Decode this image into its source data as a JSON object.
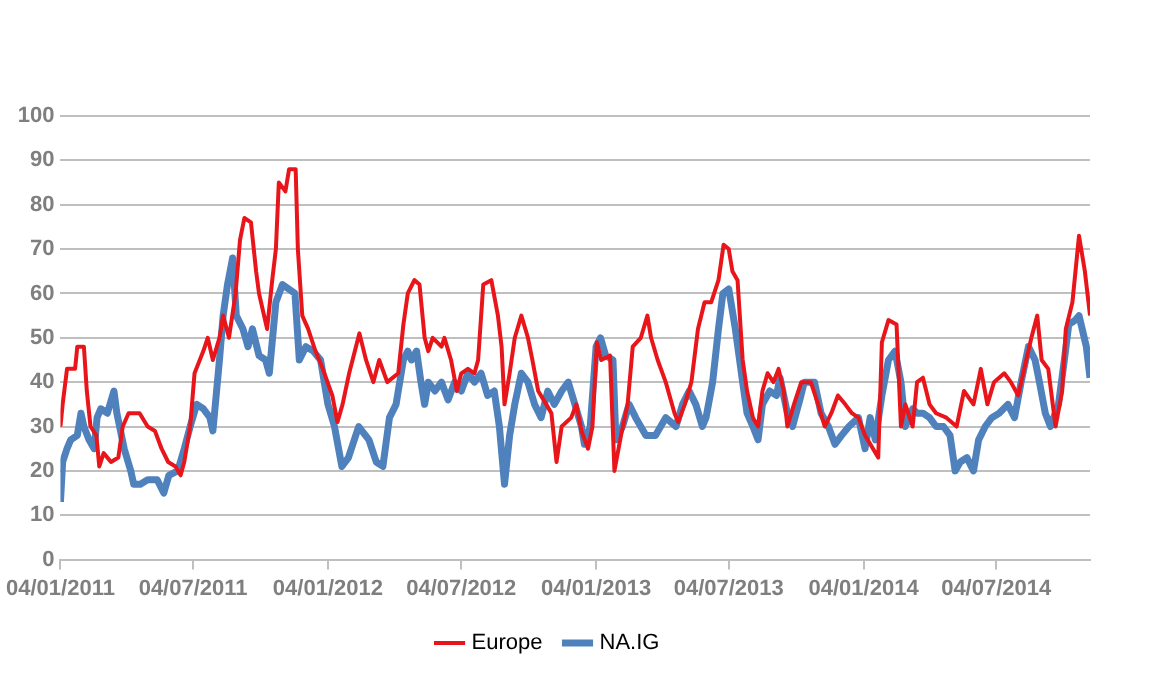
{
  "chart_data": {
    "type": "line",
    "grid": "y",
    "legend": "bottom",
    "marker": "none",
    "line_style": "solid",
    "xlim": [
      "2011-01-04",
      "2014-11-09"
    ],
    "xticks": [
      {
        "value": "2011-01-04",
        "label": "04/01/2011"
      },
      {
        "value": "2011-07-04",
        "label": "04/07/2011"
      },
      {
        "value": "2012-01-04",
        "label": "04/01/2012"
      },
      {
        "value": "2012-07-04",
        "label": "04/07/2012"
      },
      {
        "value": "2013-01-04",
        "label": "04/01/2013"
      },
      {
        "value": "2013-07-04",
        "label": "04/07/2013"
      },
      {
        "value": "2014-01-04",
        "label": "04/01/2014"
      },
      {
        "value": "2014-07-04",
        "label": "04/07/2014"
      }
    ],
    "ylim": [
      0,
      100
    ],
    "yticks": [
      0,
      10,
      20,
      30,
      40,
      50,
      60,
      70,
      80,
      90,
      100
    ],
    "series": [
      {
        "name": "Europe",
        "color": "#e8161b",
        "x": [
          "2011-01-04",
          "2011-01-07",
          "2011-01-13",
          "2011-01-24",
          "2011-01-27",
          "2011-02-05",
          "2011-02-09",
          "2011-02-14",
          "2011-02-22",
          "2011-02-26",
          "2011-03-04",
          "2011-03-14",
          "2011-03-24",
          "2011-03-30",
          "2011-04-07",
          "2011-04-22",
          "2011-05-03",
          "2011-05-13",
          "2011-05-22",
          "2011-05-31",
          "2011-06-10",
          "2011-06-17",
          "2011-06-22",
          "2011-06-30",
          "2011-07-06",
          "2011-07-18",
          "2011-07-24",
          "2011-07-31",
          "2011-08-09",
          "2011-08-14",
          "2011-08-22",
          "2011-08-31",
          "2011-09-06",
          "2011-09-12",
          "2011-09-21",
          "2011-09-28",
          "2011-10-02",
          "2011-10-13",
          "2011-10-20",
          "2011-10-25",
          "2011-10-29",
          "2011-11-07",
          "2011-11-12",
          "2011-11-21",
          "2011-11-24",
          "2011-11-30",
          "2011-12-08",
          "2011-12-18",
          "2011-12-28",
          "2012-01-10",
          "2012-01-17",
          "2012-01-24",
          "2012-02-02",
          "2012-02-16",
          "2012-02-25",
          "2012-03-06",
          "2012-03-14",
          "2012-03-25",
          "2012-04-09",
          "2012-04-16",
          "2012-04-22",
          "2012-05-01",
          "2012-05-08",
          "2012-05-15",
          "2012-05-20",
          "2012-05-26",
          "2012-06-07",
          "2012-06-11",
          "2012-06-20",
          "2012-06-28",
          "2012-07-04",
          "2012-07-13",
          "2012-07-22",
          "2012-07-27",
          "2012-08-03",
          "2012-08-14",
          "2012-08-23",
          "2012-08-28",
          "2012-09-01",
          "2012-09-08",
          "2012-09-15",
          "2012-09-24",
          "2012-10-03",
          "2012-10-09",
          "2012-10-17",
          "2012-10-28",
          "2012-11-04",
          "2012-11-11",
          "2012-11-18",
          "2012-12-01",
          "2012-12-08",
          "2012-12-15",
          "2012-12-24",
          "2012-12-30",
          "2013-01-05",
          "2013-01-11",
          "2013-01-23",
          "2013-01-29",
          "2013-02-07",
          "2013-02-16",
          "2013-02-23",
          "2013-03-06",
          "2013-03-15",
          "2013-03-20",
          "2013-03-29",
          "2013-04-09",
          "2013-04-21",
          "2013-04-26",
          "2013-05-05",
          "2013-05-14",
          "2013-05-23",
          "2013-06-01",
          "2013-06-10",
          "2013-06-20",
          "2013-06-27",
          "2013-07-04",
          "2013-07-09",
          "2013-07-16",
          "2013-07-23",
          "2013-07-29",
          "2013-08-06",
          "2013-08-13",
          "2013-08-19",
          "2013-08-26",
          "2013-09-03",
          "2013-09-10",
          "2013-09-17",
          "2013-09-22",
          "2013-10-01",
          "2013-10-11",
          "2013-10-24",
          "2013-11-03",
          "2013-11-12",
          "2013-11-21",
          "2013-11-30",
          "2013-12-10",
          "2013-12-19",
          "2013-12-28",
          "2014-01-06",
          "2014-01-24",
          "2014-01-29",
          "2014-02-07",
          "2014-02-18",
          "2014-02-24",
          "2014-03-02",
          "2014-03-12",
          "2014-03-18",
          "2014-03-26",
          "2014-04-04",
          "2014-04-13",
          "2014-04-27",
          "2014-05-11",
          "2014-05-21",
          "2014-06-03",
          "2014-06-13",
          "2014-06-22",
          "2014-07-01",
          "2014-07-15",
          "2014-07-24",
          "2014-08-03",
          "2014-08-14",
          "2014-08-21",
          "2014-08-29",
          "2014-09-04",
          "2014-09-13",
          "2014-09-23",
          "2014-10-02",
          "2014-10-07",
          "2014-10-16",
          "2014-10-25",
          "2014-11-02",
          "2014-11-09"
        ],
        "values": [
          30,
          35,
          43,
          43,
          48,
          48,
          38,
          30,
          28,
          21,
          24,
          22,
          23,
          30,
          33,
          33,
          30,
          29,
          25,
          22,
          21,
          19,
          22,
          30,
          42,
          47,
          50,
          45,
          50,
          55,
          50,
          60,
          72,
          77,
          76,
          65,
          60,
          52,
          63,
          70,
          85,
          83,
          88,
          88,
          70,
          55,
          52,
          47,
          43,
          37,
          31,
          35,
          42,
          51,
          45,
          40,
          45,
          40,
          42,
          53,
          60,
          63,
          62,
          50,
          47,
          50,
          48,
          50,
          45,
          38,
          42,
          43,
          42,
          45,
          62,
          63,
          55,
          48,
          35,
          42,
          50,
          55,
          50,
          45,
          38,
          35,
          33,
          22,
          30,
          32,
          35,
          29,
          25,
          30,
          49,
          45,
          46,
          20,
          28,
          35,
          48,
          50,
          55,
          50,
          45,
          40,
          33,
          31,
          35,
          40,
          52,
          58,
          58,
          63,
          71,
          70,
          65,
          63,
          45,
          38,
          32,
          30,
          38,
          42,
          40,
          43,
          38,
          30,
          35,
          40,
          40,
          35,
          30,
          33,
          37,
          35,
          33,
          32,
          28,
          23,
          49,
          54,
          53,
          30,
          35,
          30,
          40,
          41,
          35,
          33,
          32,
          30,
          38,
          35,
          43,
          35,
          40,
          42,
          40,
          37,
          45,
          50,
          55,
          45,
          43,
          30,
          38,
          52,
          58,
          73,
          65,
          55
        ]
      },
      {
        "name": "NA.IG",
        "color": "#4f81bd",
        "x": [
          "2011-01-04",
          "2011-01-07",
          "2011-01-13",
          "2011-01-18",
          "2011-01-27",
          "2011-02-01",
          "2011-02-05",
          "2011-02-12",
          "2011-02-19",
          "2011-02-23",
          "2011-02-28",
          "2011-03-09",
          "2011-03-18",
          "2011-03-22",
          "2011-04-01",
          "2011-04-10",
          "2011-04-14",
          "2011-04-23",
          "2011-05-03",
          "2011-05-16",
          "2011-05-25",
          "2011-06-01",
          "2011-06-13",
          "2011-06-22",
          "2011-06-30",
          "2011-07-09",
          "2011-07-18",
          "2011-07-27",
          "2011-07-31",
          "2011-08-09",
          "2011-08-14",
          "2011-08-20",
          "2011-08-27",
          "2011-09-01",
          "2011-09-10",
          "2011-09-17",
          "2011-09-23",
          "2011-10-02",
          "2011-10-11",
          "2011-10-16",
          "2011-10-25",
          "2011-11-03",
          "2011-11-20",
          "2011-11-26",
          "2011-12-05",
          "2011-12-15",
          "2011-12-25",
          "2012-01-04",
          "2012-01-13",
          "2012-01-23",
          "2012-02-01",
          "2012-02-15",
          "2012-02-29",
          "2012-03-10",
          "2012-03-19",
          "2012-03-28",
          "2012-04-06",
          "2012-04-09",
          "2012-04-16",
          "2012-04-22",
          "2012-04-27",
          "2012-05-04",
          "2012-05-10",
          "2012-05-15",
          "2012-05-20",
          "2012-05-29",
          "2012-06-07",
          "2012-06-16",
          "2012-06-25",
          "2012-07-04",
          "2012-07-13",
          "2012-07-22",
          "2012-07-31",
          "2012-08-09",
          "2012-08-18",
          "2012-08-25",
          "2012-09-01",
          "2012-09-08",
          "2012-09-15",
          "2012-09-24",
          "2012-10-03",
          "2012-10-12",
          "2012-10-21",
          "2012-10-30",
          "2012-11-08",
          "2012-11-18",
          "2012-11-27",
          "2012-12-06",
          "2012-12-15",
          "2012-12-19",
          "2012-12-27",
          "2013-01-04",
          "2013-01-10",
          "2013-01-17",
          "2013-01-27",
          "2013-01-31",
          "2013-02-09",
          "2013-02-18",
          "2013-02-27",
          "2013-03-13",
          "2013-03-26",
          "2013-04-09",
          "2013-04-23",
          "2013-05-02",
          "2013-05-11",
          "2013-05-20",
          "2013-05-29",
          "2013-06-03",
          "2013-06-12",
          "2013-06-20",
          "2013-06-26",
          "2013-07-04",
          "2013-07-13",
          "2013-07-23",
          "2013-07-29",
          "2013-08-06",
          "2013-08-13",
          "2013-08-19",
          "2013-08-29",
          "2013-09-07",
          "2013-09-12",
          "2013-09-22",
          "2013-09-29",
          "2013-10-09",
          "2013-10-15",
          "2013-10-29",
          "2013-11-07",
          "2013-11-17",
          "2013-11-26",
          "2013-12-05",
          "2013-12-15",
          "2013-12-28",
          "2014-01-06",
          "2014-01-13",
          "2014-01-20",
          "2014-01-29",
          "2014-02-07",
          "2014-02-16",
          "2014-02-24",
          "2014-03-02",
          "2014-03-12",
          "2014-03-18",
          "2014-03-26",
          "2014-04-04",
          "2014-04-13",
          "2014-04-23",
          "2014-05-02",
          "2014-05-09",
          "2014-05-16",
          "2014-05-25",
          "2014-06-03",
          "2014-06-10",
          "2014-06-19",
          "2014-06-28",
          "2014-07-08",
          "2014-07-20",
          "2014-07-29",
          "2014-08-07",
          "2014-08-17",
          "2014-08-26",
          "2014-09-01",
          "2014-09-09",
          "2014-09-16",
          "2014-09-27",
          "2014-10-05",
          "2014-10-11",
          "2014-10-20",
          "2014-10-25",
          "2014-11-04",
          "2014-11-09"
        ],
        "values": [
          13,
          22,
          25,
          27,
          28,
          33,
          30,
          27,
          25,
          32,
          34,
          33,
          38,
          33,
          25,
          20,
          17,
          17,
          18,
          18,
          15,
          19,
          20,
          25,
          30,
          35,
          34,
          32,
          29,
          45,
          55,
          62,
          68,
          55,
          52,
          48,
          52,
          46,
          45,
          42,
          58,
          62,
          60,
          45,
          48,
          47,
          45,
          35,
          30,
          21,
          23,
          30,
          27,
          22,
          21,
          32,
          35,
          38,
          45,
          47,
          45,
          47,
          40,
          35,
          40,
          38,
          40,
          36,
          40,
          38,
          42,
          40,
          42,
          37,
          38,
          30,
          17,
          28,
          35,
          42,
          40,
          35,
          32,
          38,
          35,
          38,
          40,
          35,
          30,
          26,
          30,
          48,
          50,
          46,
          45,
          27,
          30,
          35,
          32,
          28,
          28,
          32,
          30,
          35,
          38,
          35,
          30,
          32,
          40,
          52,
          60,
          61,
          52,
          40,
          33,
          30,
          27,
          35,
          38,
          37,
          41,
          33,
          30,
          36,
          40,
          40,
          33,
          30,
          26,
          28,
          30,
          32,
          25,
          32,
          27,
          37,
          45,
          47,
          40,
          30,
          34,
          33,
          33,
          32,
          30,
          30,
          28,
          20,
          22,
          23,
          20,
          27,
          30,
          32,
          33,
          35,
          32,
          40,
          48,
          45,
          40,
          33,
          30,
          35,
          45,
          53,
          54,
          55,
          48,
          41
        ]
      }
    ]
  }
}
